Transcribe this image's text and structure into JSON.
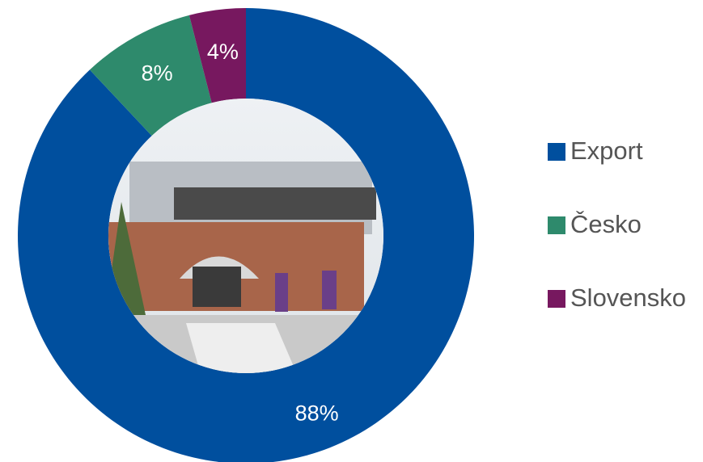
{
  "chart_data": {
    "type": "donut",
    "categories": [
      "Export",
      "Česko",
      "Slovensko"
    ],
    "values": [
      88,
      8,
      4
    ],
    "value_labels": [
      "88%",
      "8%",
      "4%"
    ],
    "colors": [
      "#004f9e",
      "#2e8a6c",
      "#77185f"
    ],
    "legend": "right"
  }
}
